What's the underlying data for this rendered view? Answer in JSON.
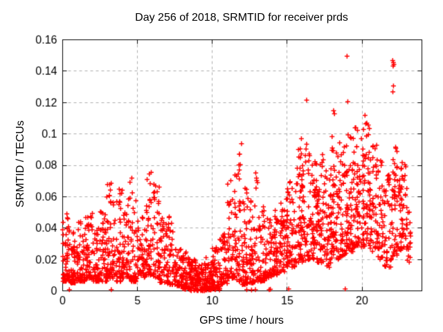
{
  "window": {
    "background": "#ffffff"
  },
  "chart_data": {
    "type": "scatter",
    "title": "Day 256 of 2018, SRMTID for receiver prds",
    "xlabel": "GPS time / hours",
    "ylabel": "SRMTID / TECUs",
    "xlim": [
      0,
      24
    ],
    "ylim": [
      0,
      0.16
    ],
    "x_ticks": [
      {
        "v": 0,
        "label": "0"
      },
      {
        "v": 5,
        "label": "5"
      },
      {
        "v": 10,
        "label": "10"
      },
      {
        "v": 15,
        "label": "15"
      },
      {
        "v": 20,
        "label": "20"
      }
    ],
    "y_ticks": [
      {
        "v": 0.0,
        "label": "0"
      },
      {
        "v": 0.02,
        "label": "0.02"
      },
      {
        "v": 0.04,
        "label": "0.04"
      },
      {
        "v": 0.06,
        "label": "0.06"
      },
      {
        "v": 0.08,
        "label": "0.08"
      },
      {
        "v": 0.1,
        "label": "0.1"
      },
      {
        "v": 0.12,
        "label": "0.12"
      },
      {
        "v": 0.14,
        "label": "0.14"
      },
      {
        "v": 0.16,
        "label": "0.16"
      }
    ],
    "grid": {
      "show": true,
      "color": "#ababab",
      "dash": [
        4,
        4
      ]
    },
    "border_color": "#000000",
    "text_color": "#000000",
    "marker": {
      "shape": "plus",
      "color": "#ff0000",
      "size": 7,
      "stroke": 1.5
    },
    "legend": "none",
    "seed": 1337,
    "density_bins": [
      [
        0.0,
        0.5,
        60,
        0.006,
        0.056,
        2.0
      ],
      [
        0.5,
        1.0,
        52,
        0.005,
        0.038,
        2.0
      ],
      [
        1.0,
        1.5,
        55,
        0.006,
        0.046,
        2.0
      ],
      [
        1.5,
        2.0,
        55,
        0.008,
        0.053,
        2.0
      ],
      [
        2.0,
        2.5,
        50,
        0.006,
        0.042,
        2.0
      ],
      [
        2.5,
        3.0,
        50,
        0.006,
        0.055,
        2.0
      ],
      [
        3.0,
        3.5,
        55,
        0.008,
        0.069,
        2.0
      ],
      [
        3.5,
        4.0,
        52,
        0.006,
        0.065,
        2.0
      ],
      [
        4.0,
        4.5,
        50,
        0.008,
        0.062,
        2.0
      ],
      [
        4.5,
        5.0,
        50,
        0.006,
        0.07,
        2.0
      ],
      [
        5.0,
        5.5,
        46,
        0.008,
        0.048,
        1.8
      ],
      [
        5.5,
        6.0,
        52,
        0.01,
        0.075,
        2.0
      ],
      [
        6.0,
        6.5,
        50,
        0.008,
        0.068,
        2.0
      ],
      [
        6.5,
        7.0,
        45,
        0.005,
        0.05,
        2.0
      ],
      [
        7.0,
        7.5,
        45,
        0.004,
        0.05,
        2.0
      ],
      [
        7.5,
        8.0,
        50,
        0.003,
        0.032,
        1.8
      ],
      [
        8.0,
        8.5,
        55,
        0.001,
        0.026,
        1.5
      ],
      [
        8.5,
        9.0,
        58,
        0.0,
        0.02,
        1.4
      ],
      [
        9.0,
        9.5,
        58,
        0.0,
        0.018,
        1.4
      ],
      [
        9.5,
        10.0,
        58,
        0.0,
        0.022,
        1.4
      ],
      [
        10.0,
        10.5,
        55,
        0.001,
        0.028,
        1.5
      ],
      [
        10.5,
        11.0,
        50,
        0.004,
        0.038,
        1.7
      ],
      [
        11.0,
        11.5,
        50,
        0.008,
        0.071,
        2.2
      ],
      [
        11.5,
        12.0,
        55,
        0.006,
        0.09,
        2.4
      ],
      [
        12.0,
        12.5,
        50,
        0.004,
        0.066,
        2.2
      ],
      [
        12.5,
        13.0,
        52,
        0.005,
        0.075,
        2.2
      ],
      [
        13.0,
        13.5,
        50,
        0.006,
        0.054,
        1.9
      ],
      [
        13.5,
        14.0,
        48,
        0.008,
        0.048,
        1.8
      ],
      [
        14.0,
        14.5,
        50,
        0.01,
        0.054,
        1.8
      ],
      [
        14.5,
        15.0,
        50,
        0.012,
        0.062,
        1.7
      ],
      [
        15.0,
        15.5,
        55,
        0.015,
        0.073,
        1.6
      ],
      [
        15.5,
        16.0,
        55,
        0.018,
        0.091,
        1.6
      ],
      [
        16.0,
        16.5,
        55,
        0.018,
        0.093,
        1.5
      ],
      [
        16.5,
        17.0,
        55,
        0.02,
        0.083,
        1.4
      ],
      [
        17.0,
        17.5,
        55,
        0.018,
        0.087,
        1.4
      ],
      [
        17.5,
        18.0,
        55,
        0.015,
        0.079,
        1.4
      ],
      [
        18.0,
        18.5,
        55,
        0.02,
        0.092,
        1.4
      ],
      [
        18.5,
        19.0,
        55,
        0.022,
        0.096,
        1.4
      ],
      [
        19.0,
        19.5,
        55,
        0.025,
        0.102,
        1.4
      ],
      [
        19.5,
        20.0,
        55,
        0.028,
        0.106,
        1.4
      ],
      [
        20.0,
        20.5,
        55,
        0.028,
        0.108,
        1.4
      ],
      [
        20.5,
        21.0,
        50,
        0.025,
        0.094,
        1.4
      ],
      [
        21.0,
        21.5,
        46,
        0.02,
        0.084,
        1.4
      ],
      [
        21.5,
        22.0,
        40,
        0.015,
        0.074,
        1.5
      ],
      [
        22.0,
        22.5,
        48,
        0.022,
        0.094,
        1.4
      ],
      [
        22.5,
        23.0,
        55,
        0.026,
        0.084,
        1.3
      ],
      [
        23.0,
        23.25,
        18,
        0.018,
        0.06,
        1.5
      ]
    ],
    "outliers": [
      [
        19.0,
        0.1495
      ],
      [
        22.05,
        0.1468
      ],
      [
        22.1,
        0.1455
      ],
      [
        22.13,
        0.1442
      ],
      [
        22.08,
        0.1432
      ],
      [
        22.1,
        0.1306
      ],
      [
        22.06,
        0.1268
      ],
      [
        16.3,
        0.1215
      ],
      [
        19.05,
        0.1205
      ],
      [
        18.1,
        0.1148
      ],
      [
        18.16,
        0.1128
      ],
      [
        20.2,
        0.1118
      ],
      [
        20.25,
        0.1065
      ],
      [
        20.1,
        0.1028
      ],
      [
        20.3,
        0.0986
      ],
      [
        18.0,
        0.0983
      ],
      [
        15.95,
        0.097
      ],
      [
        16.3,
        0.0934
      ],
      [
        11.95,
        0.0938
      ],
      [
        11.82,
        0.0872
      ],
      [
        11.78,
        0.0802
      ],
      [
        12.9,
        0.0752
      ],
      [
        12.95,
        0.0718
      ],
      [
        13.02,
        0.069
      ],
      [
        5.92,
        0.0755
      ],
      [
        4.62,
        0.0718
      ],
      [
        4.5,
        0.0692
      ],
      [
        6.1,
        0.0679
      ],
      [
        2.95,
        0.0598
      ],
      [
        18.88,
        0.0012
      ],
      [
        0.45,
        0.0008
      ],
      [
        3.25,
        0.0008
      ],
      [
        8.45,
        0.001
      ],
      [
        9.62,
        0.0006
      ],
      [
        9.9,
        0.0006
      ],
      [
        10.2,
        0.0008
      ],
      [
        10.48,
        0.0006
      ],
      [
        12.3,
        0.0008
      ],
      [
        12.62,
        0.0006
      ],
      [
        12.88,
        0.0008
      ],
      [
        13.8,
        0.0008
      ],
      [
        13.88,
        0.001
      ],
      [
        15.1,
        0.0012
      ]
    ]
  }
}
